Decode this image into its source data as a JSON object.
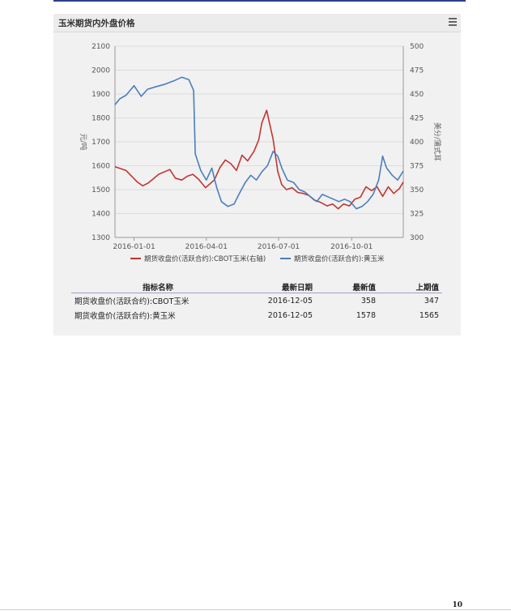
{
  "panel": {
    "title": "玉米期货内外盘价格",
    "menu_icon": "hamburger-menu-icon"
  },
  "chart_data": {
    "type": "line",
    "x_tick_labels": [
      "2016-01-01",
      "2016-04-01",
      "2016-07-01",
      "2016-10-01"
    ],
    "x_range": [
      "2015-12-08",
      "2016-12-05"
    ],
    "y_left": {
      "label": "元/吨",
      "range": [
        1300,
        2100
      ],
      "ticks": [
        1300,
        1400,
        1500,
        1600,
        1700,
        1800,
        1900,
        2000,
        2100
      ]
    },
    "y_right": {
      "label": "美分/蒲式耳",
      "range": [
        300,
        500
      ],
      "ticks": [
        300,
        325,
        350,
        375,
        400,
        425,
        450,
        475,
        500
      ]
    },
    "legend_position": "bottom",
    "grid": true,
    "series": [
      {
        "name": "期货收盘价(活跃合约):CBOT玉米(右轴)",
        "axis": "right",
        "color": "#c23531",
        "points": [
          [
            "2015-12-08",
            374
          ],
          [
            "2015-12-22",
            370
          ],
          [
            "2016-01-05",
            358
          ],
          [
            "2016-01-12",
            354
          ],
          [
            "2016-01-19",
            357
          ],
          [
            "2016-02-01",
            366
          ],
          [
            "2016-02-15",
            371
          ],
          [
            "2016-02-22",
            362
          ],
          [
            "2016-03-01",
            360
          ],
          [
            "2016-03-08",
            364
          ],
          [
            "2016-03-15",
            366
          ],
          [
            "2016-03-22",
            361
          ],
          [
            "2016-03-31",
            352
          ],
          [
            "2016-04-11",
            360
          ],
          [
            "2016-04-18",
            373
          ],
          [
            "2016-04-25",
            381
          ],
          [
            "2016-05-02",
            377
          ],
          [
            "2016-05-09",
            370
          ],
          [
            "2016-05-16",
            386
          ],
          [
            "2016-05-23",
            380
          ],
          [
            "2016-05-31",
            390
          ],
          [
            "2016-06-06",
            402
          ],
          [
            "2016-06-10",
            420
          ],
          [
            "2016-06-16",
            433
          ],
          [
            "2016-06-20",
            418
          ],
          [
            "2016-06-24",
            403
          ],
          [
            "2016-06-30",
            369
          ],
          [
            "2016-07-05",
            355
          ],
          [
            "2016-07-11",
            350
          ],
          [
            "2016-07-18",
            352
          ],
          [
            "2016-07-25",
            347
          ],
          [
            "2016-08-01",
            346
          ],
          [
            "2016-08-08",
            344
          ],
          [
            "2016-08-15",
            339
          ],
          [
            "2016-08-22",
            337
          ],
          [
            "2016-08-31",
            333
          ],
          [
            "2016-09-07",
            335
          ],
          [
            "2016-09-14",
            330
          ],
          [
            "2016-09-21",
            335
          ],
          [
            "2016-09-28",
            333
          ],
          [
            "2016-10-05",
            340
          ],
          [
            "2016-10-12",
            342
          ],
          [
            "2016-10-19",
            353
          ],
          [
            "2016-10-26",
            349
          ],
          [
            "2016-11-02",
            353
          ],
          [
            "2016-11-09",
            343
          ],
          [
            "2016-11-16",
            353
          ],
          [
            "2016-11-23",
            346
          ],
          [
            "2016-11-30",
            351
          ],
          [
            "2016-12-05",
            358
          ]
        ]
      },
      {
        "name": "期货收盘价(活跃合约):黄玉米",
        "axis": "left",
        "color": "#4a7ebb",
        "points": [
          [
            "2015-12-08",
            1855
          ],
          [
            "2015-12-14",
            1880
          ],
          [
            "2015-12-22",
            1895
          ],
          [
            "2016-01-01",
            1935
          ],
          [
            "2016-01-10",
            1890
          ],
          [
            "2016-01-18",
            1920
          ],
          [
            "2016-01-28",
            1930
          ],
          [
            "2016-02-08",
            1940
          ],
          [
            "2016-02-20",
            1955
          ],
          [
            "2016-03-01",
            1970
          ],
          [
            "2016-03-10",
            1960
          ],
          [
            "2016-03-16",
            1915
          ],
          [
            "2016-03-18",
            1650
          ],
          [
            "2016-03-25",
            1580
          ],
          [
            "2016-04-01",
            1540
          ],
          [
            "2016-04-08",
            1590
          ],
          [
            "2016-04-14",
            1510
          ],
          [
            "2016-04-20",
            1450
          ],
          [
            "2016-04-28",
            1430
          ],
          [
            "2016-05-06",
            1440
          ],
          [
            "2016-05-12",
            1480
          ],
          [
            "2016-05-20",
            1530
          ],
          [
            "2016-05-27",
            1560
          ],
          [
            "2016-06-03",
            1540
          ],
          [
            "2016-06-10",
            1575
          ],
          [
            "2016-06-17",
            1600
          ],
          [
            "2016-06-24",
            1660
          ],
          [
            "2016-06-30",
            1640
          ],
          [
            "2016-07-05",
            1590
          ],
          [
            "2016-07-12",
            1540
          ],
          [
            "2016-07-20",
            1530
          ],
          [
            "2016-07-27",
            1500
          ],
          [
            "2016-08-03",
            1490
          ],
          [
            "2016-08-10",
            1470
          ],
          [
            "2016-08-18",
            1450
          ],
          [
            "2016-08-25",
            1480
          ],
          [
            "2016-09-01",
            1470
          ],
          [
            "2016-09-08",
            1460
          ],
          [
            "2016-09-15",
            1450
          ],
          [
            "2016-09-22",
            1460
          ],
          [
            "2016-09-29",
            1450
          ],
          [
            "2016-10-07",
            1420
          ],
          [
            "2016-10-14",
            1430
          ],
          [
            "2016-10-21",
            1450
          ],
          [
            "2016-10-28",
            1480
          ],
          [
            "2016-11-04",
            1540
          ],
          [
            "2016-11-09",
            1640
          ],
          [
            "2016-11-14",
            1590
          ],
          [
            "2016-11-21",
            1560
          ],
          [
            "2016-11-28",
            1540
          ],
          [
            "2016-12-05",
            1578
          ]
        ]
      }
    ]
  },
  "table": {
    "headers": {
      "name": "指标名称",
      "date": "最新日期",
      "latest": "最新值",
      "previous": "上期值"
    },
    "rows": [
      {
        "name": "期货收盘价(活跃合约):CBOT玉米",
        "date": "2016-12-05",
        "latest": "358",
        "previous": "347"
      },
      {
        "name": "期货收盘价(活跃合约):黄玉米",
        "date": "2016-12-05",
        "latest": "1578",
        "previous": "1565"
      }
    ]
  },
  "page_number": "10"
}
